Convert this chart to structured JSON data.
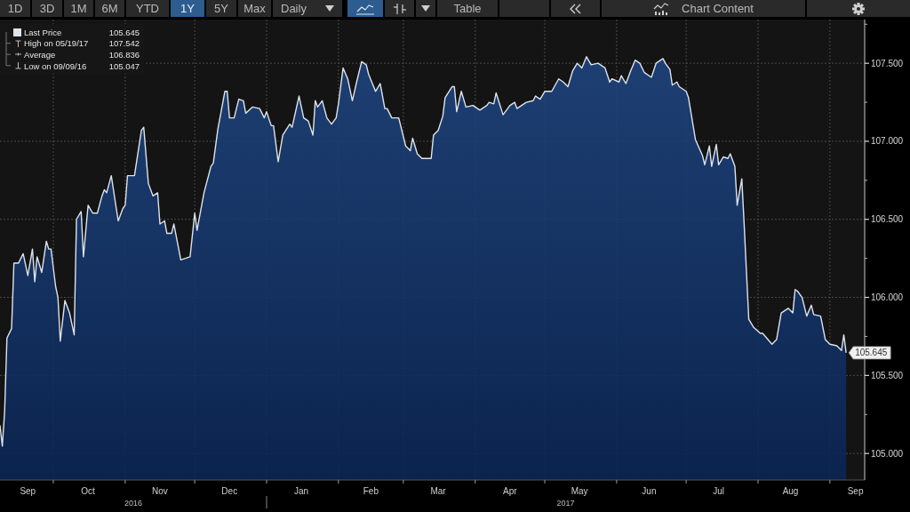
{
  "chart_data": {
    "type": "area",
    "x": [
      "2016-09-08",
      "2016-09-09",
      "2016-09-10",
      "2016-09-11",
      "2016-09-13",
      "2016-09-14",
      "2016-09-16",
      "2016-09-18",
      "2016-09-20",
      "2016-09-22",
      "2016-09-23",
      "2016-09-24",
      "2016-09-26",
      "2016-09-28",
      "2016-09-29",
      "2016-09-30",
      "2016-10-02",
      "2016-10-03",
      "2016-10-04",
      "2016-10-06",
      "2016-10-08",
      "2016-10-10",
      "2016-10-11",
      "2016-10-13",
      "2016-10-14",
      "2016-10-16",
      "2016-10-18",
      "2016-10-20",
      "2016-10-22",
      "2016-10-23",
      "2016-10-24",
      "2016-10-26",
      "2016-10-29",
      "2016-10-31",
      "2016-11-01",
      "2016-11-02",
      "2016-11-05",
      "2016-11-08",
      "2016-11-09",
      "2016-11-11",
      "2016-11-13",
      "2016-11-15",
      "2016-11-16",
      "2016-11-18",
      "2016-11-19",
      "2016-11-21",
      "2016-11-22",
      "2016-11-25",
      "2016-11-29",
      "2016-12-01",
      "2016-12-02",
      "2016-12-05",
      "2016-12-08",
      "2016-12-09",
      "2016-12-11",
      "2016-12-14",
      "2016-12-15",
      "2016-12-16",
      "2016-12-18",
      "2016-12-20",
      "2016-12-22",
      "2016-12-23",
      "2016-12-26",
      "2016-12-29",
      "2016-12-31",
      "2017-01-01",
      "2017-01-03",
      "2017-01-04",
      "2017-01-06",
      "2017-01-08",
      "2017-01-11",
      "2017-01-12",
      "2017-01-15",
      "2017-01-17",
      "2017-01-19",
      "2017-01-21",
      "2017-01-22",
      "2017-01-23",
      "2017-01-25",
      "2017-01-27",
      "2017-01-29",
      "2017-01-31",
      "2017-02-01",
      "2017-02-03",
      "2017-02-05",
      "2017-02-07",
      "2017-02-09",
      "2017-02-11",
      "2017-02-13",
      "2017-02-14",
      "2017-02-17",
      "2017-02-19",
      "2017-02-21",
      "2017-02-22",
      "2017-02-24",
      "2017-02-27",
      "2017-03-02",
      "2017-03-04",
      "2017-03-05",
      "2017-03-07",
      "2017-03-09",
      "2017-03-13",
      "2017-03-14",
      "2017-03-16",
      "2017-03-18",
      "2017-03-19",
      "2017-03-22",
      "2017-03-23",
      "2017-03-24",
      "2017-03-26",
      "2017-03-28",
      "2017-03-31",
      "2017-04-03",
      "2017-04-06",
      "2017-04-07",
      "2017-04-09",
      "2017-04-10",
      "2017-04-13",
      "2017-04-16",
      "2017-04-18",
      "2017-04-19",
      "2017-04-23",
      "2017-04-26",
      "2017-04-27",
      "2017-04-29",
      "2017-05-01",
      "2017-05-04",
      "2017-05-07",
      "2017-05-09",
      "2017-05-11",
      "2017-05-13",
      "2017-05-15",
      "2017-05-17",
      "2017-05-19",
      "2017-05-21",
      "2017-05-24",
      "2017-05-27",
      "2017-05-29",
      "2017-05-30",
      "2017-06-02",
      "2017-06-03",
      "2017-06-05",
      "2017-06-07",
      "2017-06-09",
      "2017-06-11",
      "2017-06-13",
      "2017-06-16",
      "2017-06-18",
      "2017-06-21",
      "2017-06-22",
      "2017-06-24",
      "2017-06-25",
      "2017-06-27",
      "2017-06-28",
      "2017-07-01",
      "2017-07-02",
      "2017-07-05",
      "2017-07-08",
      "2017-07-09",
      "2017-07-11",
      "2017-07-12",
      "2017-07-14",
      "2017-07-15",
      "2017-07-17",
      "2017-07-19",
      "2017-07-20",
      "2017-07-22",
      "2017-07-23",
      "2017-07-25",
      "2017-07-26",
      "2017-07-28",
      "2017-07-30",
      "2017-08-02",
      "2017-08-03",
      "2017-08-07",
      "2017-08-09",
      "2017-08-11",
      "2017-08-14",
      "2017-08-16",
      "2017-08-17",
      "2017-08-18",
      "2017-08-20",
      "2017-08-22",
      "2017-08-24",
      "2017-08-25",
      "2017-08-28",
      "2017-08-30",
      "2017-09-01",
      "2017-09-04",
      "2017-09-06",
      "2017-09-07",
      "2017-09-08"
    ],
    "series": [
      {
        "name": "Last Price",
        "color": "#dfe3ea",
        "values": [
          105.18,
          105.047,
          105.27,
          105.74,
          105.8,
          106.22,
          106.22,
          106.28,
          106.14,
          106.31,
          106.1,
          106.26,
          106.16,
          106.36,
          106.31,
          106.31,
          106.07,
          106.0,
          105.72,
          105.98,
          105.9,
          105.76,
          106.5,
          106.55,
          106.26,
          106.59,
          106.54,
          106.54,
          106.65,
          106.69,
          106.67,
          106.78,
          106.49,
          106.57,
          106.59,
          106.78,
          106.78,
          107.07,
          107.09,
          106.73,
          106.65,
          106.67,
          106.47,
          106.49,
          106.41,
          106.41,
          106.47,
          106.24,
          106.26,
          106.54,
          106.43,
          106.67,
          106.84,
          106.86,
          107.08,
          107.32,
          107.32,
          107.15,
          107.15,
          107.27,
          107.26,
          107.18,
          107.22,
          107.21,
          107.15,
          107.19,
          107.1,
          107.1,
          106.87,
          107.04,
          107.11,
          107.09,
          107.29,
          107.15,
          107.13,
          107.04,
          107.26,
          107.22,
          107.26,
          107.15,
          107.11,
          107.15,
          107.24,
          107.47,
          107.4,
          107.26,
          107.39,
          107.51,
          107.49,
          107.43,
          107.32,
          107.37,
          107.21,
          107.21,
          107.15,
          107.15,
          106.97,
          106.94,
          107.02,
          106.92,
          106.89,
          106.89,
          107.04,
          107.07,
          107.16,
          107.28,
          107.35,
          107.35,
          107.19,
          107.32,
          107.22,
          107.23,
          107.2,
          107.23,
          107.25,
          107.24,
          107.31,
          107.17,
          107.23,
          107.25,
          107.21,
          107.25,
          107.26,
          107.29,
          107.27,
          107.32,
          107.32,
          107.4,
          107.38,
          107.35,
          107.45,
          107.5,
          107.47,
          107.542,
          107.49,
          107.5,
          107.47,
          107.38,
          107.4,
          107.38,
          107.42,
          107.37,
          107.45,
          107.52,
          107.5,
          107.44,
          107.41,
          107.5,
          107.53,
          107.5,
          107.46,
          107.36,
          107.38,
          107.35,
          107.32,
          107.28,
          107.01,
          106.91,
          106.85,
          106.97,
          106.84,
          106.98,
          106.85,
          106.9,
          106.89,
          106.92,
          106.84,
          106.59,
          106.76,
          106.47,
          105.86,
          105.81,
          105.77,
          105.77,
          105.7,
          105.73,
          105.9,
          105.93,
          105.9,
          106.05,
          106.04,
          106.0,
          105.88,
          105.95,
          105.89,
          105.88,
          105.73,
          105.7,
          105.69,
          105.66,
          105.76,
          105.645
        ],
        "value_labels": [
          null,
          null,
          null,
          null,
          null,
          null,
          null,
          null,
          null,
          null,
          null,
          null,
          null,
          null,
          null,
          null,
          null,
          null,
          null,
          null,
          null,
          null,
          null,
          null,
          null,
          null,
          null,
          null,
          null,
          null,
          null,
          null,
          null,
          null,
          null,
          null,
          null,
          null,
          null,
          null,
          null,
          null,
          null,
          null,
          null,
          null,
          null,
          null,
          null,
          null,
          null,
          null,
          null,
          null,
          null,
          null,
          null,
          null,
          null,
          null,
          null,
          null,
          null,
          null,
          null,
          null,
          null,
          null,
          null,
          null,
          null,
          null,
          null,
          null,
          null,
          null,
          null,
          null,
          null,
          null,
          null,
          null,
          null,
          null,
          null,
          null,
          null,
          null,
          null,
          null,
          null,
          null,
          null,
          null,
          null,
          null,
          null,
          null,
          null,
          null,
          null,
          null,
          null,
          null,
          null,
          null,
          null,
          null,
          null,
          null,
          null,
          null,
          null,
          null,
          null,
          null,
          null,
          null,
          null,
          null,
          null,
          null,
          null,
          null,
          null,
          null,
          null,
          null,
          null,
          null,
          null,
          null,
          null,
          null,
          null,
          null,
          null,
          null,
          null,
          null,
          null,
          null,
          null,
          null,
          null,
          null,
          null,
          null,
          null,
          null,
          null,
          null,
          null,
          null,
          null,
          null,
          null,
          null,
          null,
          null,
          null,
          null,
          null,
          null,
          null,
          null,
          null,
          null,
          null,
          null,
          null,
          null,
          null,
          null,
          null,
          null,
          null,
          null,
          null,
          null,
          null,
          null,
          null,
          null,
          null,
          null,
          null,
          null,
          null,
          null,
          null,
          "105.645"
        ]
      }
    ],
    "xlim": [
      "2016-09-08",
      "2017-09-16"
    ],
    "xticks": [
      {
        "value": "2016-09-20",
        "label": "Sep"
      },
      {
        "value": "2016-10-01",
        "label": null
      },
      {
        "value": "2016-10-16",
        "label": "Oct"
      },
      {
        "value": "2016-11-01",
        "label": null
      },
      {
        "value": "2016-11-16",
        "label": "Nov"
      },
      {
        "value": "2016-12-01",
        "label": null
      },
      {
        "value": "2016-12-16",
        "label": "Dec"
      },
      {
        "value": "2017-01-01",
        "label": null
      },
      {
        "value": "2017-01-16",
        "label": "Jan"
      },
      {
        "value": "2017-02-01",
        "label": null
      },
      {
        "value": "2017-02-15",
        "label": "Feb"
      },
      {
        "value": "2017-03-01",
        "label": null
      },
      {
        "value": "2017-03-16",
        "label": "Mar"
      },
      {
        "value": "2017-04-01",
        "label": null
      },
      {
        "value": "2017-04-16",
        "label": "Apr"
      },
      {
        "value": "2017-05-01",
        "label": null
      },
      {
        "value": "2017-05-16",
        "label": "May"
      },
      {
        "value": "2017-06-01",
        "label": null
      },
      {
        "value": "2017-06-15",
        "label": "Jun"
      },
      {
        "value": "2017-07-01",
        "label": null
      },
      {
        "value": "2017-07-15",
        "label": "Jul"
      },
      {
        "value": "2017-08-01",
        "label": null
      },
      {
        "value": "2017-08-15",
        "label": "Aug"
      },
      {
        "value": "2017-09-01",
        "label": null
      },
      {
        "value": "2017-09-12",
        "label": "Sep"
      }
    ],
    "ylim": [
      104.83,
      107.78
    ],
    "yticks": [
      {
        "value": 105,
        "label": "105.000"
      },
      {
        "value": 105.25,
        "label": null
      },
      {
        "value": 105.5,
        "label": "105.500"
      },
      {
        "value": 105.75,
        "label": null
      },
      {
        "value": 106,
        "label": "106.000"
      },
      {
        "value": 106.25,
        "label": null
      },
      {
        "value": 106.5,
        "label": "106.500"
      },
      {
        "value": 106.75,
        "label": null
      },
      {
        "value": 107,
        "label": "107.000"
      },
      {
        "value": 107.25,
        "label": null
      },
      {
        "value": 107.5,
        "label": "107.500"
      },
      {
        "value": 107.75,
        "label": null
      }
    ],
    "grid": true,
    "legend": "top left",
    "annotations": [
      "1D",
      "3D",
      "1M",
      "6M",
      "YTD",
      "1Y",
      "5Y",
      "Max",
      "Daily",
      "Table",
      "Chart Content",
      "High on 05/19/17",
      "107.542",
      "Average",
      "106.836",
      "Low on 09/09/16",
      "105.047",
      "2016",
      "2017"
    ]
  }
}
